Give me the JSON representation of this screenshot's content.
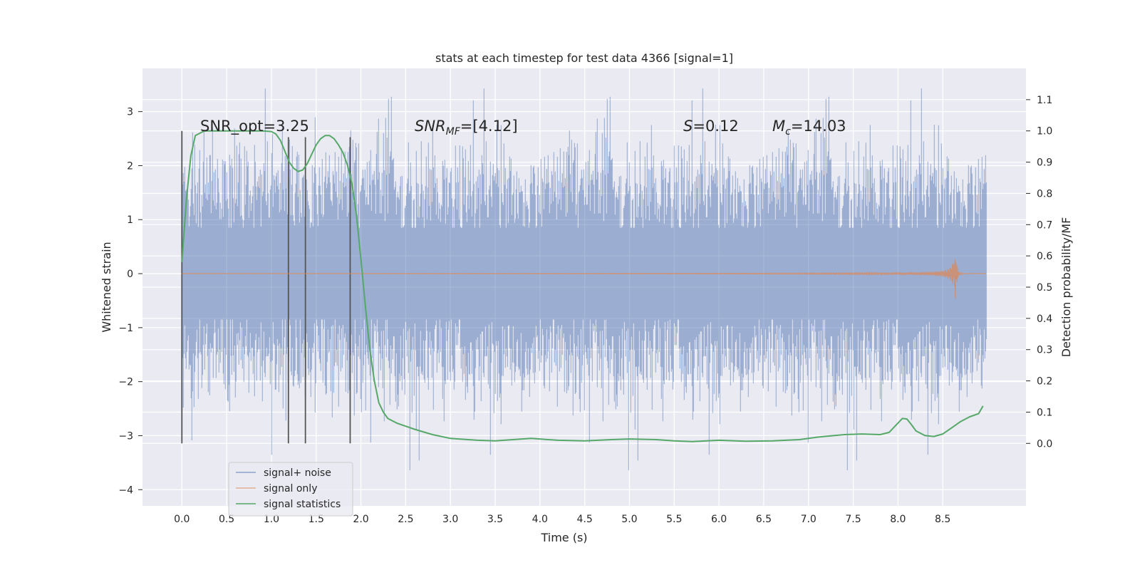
{
  "chart_data": {
    "type": "line",
    "title": "stats at each timestep for test data 4366 [signal=1]",
    "xlabel": "Time (s)",
    "ylabel": "Whitened strain",
    "ylabel_right": "Detection probability/MF",
    "xlim": [
      -0.44,
      9.43
    ],
    "ylim": [
      -4.3,
      3.8
    ],
    "ylim_right": [
      -0.2,
      1.2
    ],
    "x_ticks": [
      "0.0",
      "0.5",
      "1.0",
      "1.5",
      "2.0",
      "2.5",
      "3.0",
      "3.5",
      "4.0",
      "4.5",
      "5.0",
      "5.5",
      "6.0",
      "6.5",
      "7.0",
      "7.5",
      "8.0",
      "8.5"
    ],
    "y_ticks": [
      "3",
      "2",
      "1",
      "0",
      "−1",
      "−2",
      "−3",
      "−4"
    ],
    "y_right_ticks": [
      "1.1",
      "1.0",
      "0.9",
      "0.8",
      "0.7",
      "0.6",
      "0.5",
      "0.4",
      "0.3",
      "0.2",
      "0.1",
      "0.0"
    ],
    "grid": true,
    "legend_position": "lower-left",
    "annotations": {
      "snr_opt": "SNR_opt=3.25",
      "snr_mf_main": "SNR",
      "snr_mf_sub": "MF",
      "snr_mf_value": "=[4.12]",
      "s_main": "S",
      "s_value": "=0.12",
      "mc_main": "M",
      "mc_sub": "c",
      "mc_value": "=14.03"
    },
    "vertical_markers_x": [
      0.0,
      1.19,
      1.38,
      1.88
    ],
    "series": [
      {
        "name": "signal+ noise",
        "color": "#4c72b0",
        "axis": "left",
        "x_range": [
          0.0,
          8.99
        ],
        "typical_range": [
          -1.5,
          1.5
        ],
        "max": 3.5,
        "min": -4.0
      },
      {
        "name": "signal only",
        "color": "#dd8452",
        "axis": "left",
        "x_range": [
          0.0,
          8.99
        ],
        "peak_time": 8.64,
        "peak_amplitude": 0.55
      },
      {
        "name": "signal statistics",
        "color": "#55a868",
        "axis": "right",
        "x": [
          0.0,
          0.05,
          0.1,
          0.15,
          0.25,
          0.4,
          0.6,
          0.8,
          0.9,
          1.0,
          1.05,
          1.1,
          1.15,
          1.2,
          1.25,
          1.3,
          1.35,
          1.4,
          1.45,
          1.5,
          1.55,
          1.6,
          1.65,
          1.7,
          1.75,
          1.8,
          1.85,
          1.9,
          1.95,
          2.0,
          2.05,
          2.1,
          2.15,
          2.2,
          2.25,
          2.3,
          2.4,
          2.5,
          2.6,
          2.8,
          3.0,
          3.3,
          3.5,
          3.8,
          3.9,
          4.2,
          4.5,
          4.8,
          5.0,
          5.3,
          5.5,
          5.7,
          6.0,
          6.3,
          6.6,
          6.9,
          7.1,
          7.4,
          7.6,
          7.8,
          7.9,
          8.0,
          8.05,
          8.1,
          8.15,
          8.2,
          8.3,
          8.4,
          8.5,
          8.6,
          8.7,
          8.8,
          8.9,
          8.95
        ],
        "values": [
          0.58,
          0.78,
          0.92,
          0.985,
          1.0,
          1.0,
          1.0,
          1.0,
          1.0,
          0.998,
          0.99,
          0.97,
          0.935,
          0.9,
          0.88,
          0.87,
          0.875,
          0.895,
          0.925,
          0.955,
          0.975,
          0.985,
          0.985,
          0.975,
          0.955,
          0.93,
          0.89,
          0.83,
          0.73,
          0.59,
          0.44,
          0.3,
          0.2,
          0.13,
          0.1,
          0.08,
          0.065,
          0.055,
          0.045,
          0.028,
          0.016,
          0.01,
          0.008,
          0.014,
          0.016,
          0.01,
          0.008,
          0.012,
          0.014,
          0.012,
          0.008,
          0.006,
          0.01,
          0.007,
          0.008,
          0.012,
          0.02,
          0.028,
          0.03,
          0.028,
          0.035,
          0.065,
          0.08,
          0.078,
          0.06,
          0.04,
          0.025,
          0.022,
          0.03,
          0.05,
          0.07,
          0.085,
          0.095,
          0.12
        ]
      }
    ]
  }
}
